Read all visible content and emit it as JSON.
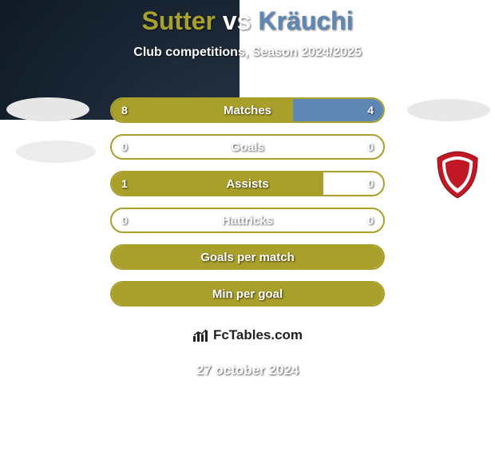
{
  "background": {
    "color": "#0f1a28",
    "gradient_inner": "#2a3848",
    "gradient_outer": "#0a1420"
  },
  "title": {
    "player1": "Sutter",
    "vs": "vs",
    "player2": "Kräuchi",
    "player1_color": "#a9a02b",
    "vs_color": "#ffffff",
    "player2_color": "#5e87b4",
    "fontsize": 32
  },
  "subtitle": {
    "text": "Club competitions, Season 2024/2025",
    "color": "#ffffff",
    "fontsize": 16
  },
  "bars": {
    "border_color": "#a9a02b",
    "left_fill_color": "#a9a02b",
    "right_fill_color": "#5e87b4",
    "label_color": "#ffffff",
    "value_color": "#ffffff",
    "rows": [
      {
        "label": "Matches",
        "left": "8",
        "right": "4",
        "left_pct": 66.7,
        "right_pct": 33.3
      },
      {
        "label": "Goals",
        "left": "0",
        "right": "0",
        "left_pct": 0,
        "right_pct": 0
      },
      {
        "label": "Assists",
        "left": "1",
        "right": "0",
        "left_pct": 78,
        "right_pct": 0
      },
      {
        "label": "Hattricks",
        "left": "0",
        "right": "0",
        "left_pct": 0,
        "right_pct": 0
      },
      {
        "label": "Goals per match",
        "left": "",
        "right": "",
        "left_pct": 100,
        "right_pct": 0
      },
      {
        "label": "Min per goal",
        "left": "",
        "right": "",
        "left_pct": 100,
        "right_pct": 0
      }
    ]
  },
  "decorations": {
    "ellipse_color": "#e6e6e6",
    "circle_bg": "#ffffff",
    "shield_color": "#c01824"
  },
  "watermark": {
    "text": "FcTables.com",
    "bg": "#ffffff",
    "color": "#222222"
  },
  "date": {
    "text": "27 october 2024",
    "color": "#ffffff"
  }
}
